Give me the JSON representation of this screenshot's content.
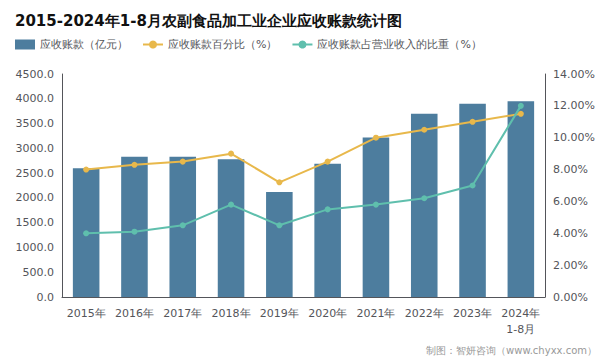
{
  "chart_data": {
    "type": "bar",
    "title": "2015-2024年1-8月农副食品加工业企业应收账款统计图",
    "categories": [
      "2015年",
      "2016年",
      "2017年",
      "2018年",
      "2019年",
      "2020年",
      "2021年",
      "2022年",
      "2023年",
      "2024年"
    ],
    "series": [
      {
        "name": "应收账款（亿元）",
        "type": "bar",
        "color": "#4d7d9e",
        "values": [
          2600,
          2830,
          2830,
          2780,
          2120,
          2690,
          3220,
          3700,
          3900,
          3950
        ]
      },
      {
        "name": "应收账款百分比（%）",
        "type": "line",
        "marker": "circle",
        "axis": "y2",
        "color": "#e8b84b",
        "values": [
          8.0,
          8.3,
          8.5,
          9.0,
          7.2,
          8.5,
          10.0,
          10.5,
          11.0,
          11.5
        ]
      },
      {
        "name": "应收账款占营业收入的比重（%）",
        "type": "line",
        "marker": "circle",
        "axis": "y2",
        "color": "#5fbfad",
        "values": [
          4.0,
          4.1,
          4.5,
          5.8,
          4.5,
          5.5,
          5.8,
          6.2,
          7.0,
          12.0
        ]
      }
    ],
    "ylim": [
      0,
      4500
    ],
    "yticks": [
      {
        "value": 0,
        "label": "0.0"
      },
      {
        "value": 500,
        "label": "500.0"
      },
      {
        "value": 1000,
        "label": "1000.0"
      },
      {
        "value": 1500,
        "label": "1500.0"
      },
      {
        "value": 2000,
        "label": "2000.0"
      },
      {
        "value": 2500,
        "label": "2500.0"
      },
      {
        "value": 3000,
        "label": "3000.0"
      },
      {
        "value": 3500,
        "label": "3500.0"
      },
      {
        "value": 4000,
        "label": "4000.0"
      },
      {
        "value": 4500,
        "label": "4500.0"
      }
    ],
    "y2lim": [
      0,
      14
    ],
    "y2ticks": [
      {
        "value": 0,
        "label": "0.00%"
      },
      {
        "value": 2,
        "label": "2.00%"
      },
      {
        "value": 4,
        "label": "4.00%"
      },
      {
        "value": 6,
        "label": "6.00%"
      },
      {
        "value": 8,
        "label": "8.00%"
      },
      {
        "value": 10,
        "label": "10.00%"
      },
      {
        "value": 12,
        "label": "12.00%"
      },
      {
        "value": 14,
        "label": "14.00%"
      }
    ],
    "annotations": [
      {
        "text": "1-8月",
        "x": "2024年"
      },
      {
        "text": "制图：智妍咨询（www.chyxx.com）"
      }
    ],
    "grid": false,
    "legend": "upper left"
  }
}
